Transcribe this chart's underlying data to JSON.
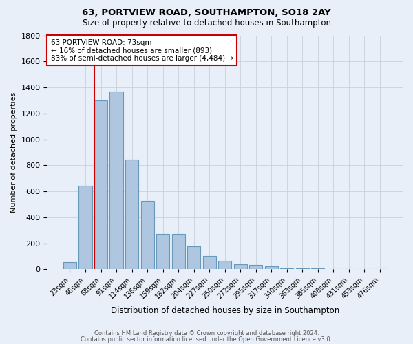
{
  "title1": "63, PORTVIEW ROAD, SOUTHAMPTON, SO18 2AY",
  "title2": "Size of property relative to detached houses in Southampton",
  "xlabel": "Distribution of detached houses by size in Southampton",
  "ylabel": "Number of detached properties",
  "footer1": "Contains HM Land Registry data © Crown copyright and database right 2024.",
  "footer2": "Contains public sector information licensed under the Open Government Licence v3.0.",
  "bar_labels": [
    "23sqm",
    "46sqm",
    "68sqm",
    "91sqm",
    "114sqm",
    "136sqm",
    "159sqm",
    "182sqm",
    "204sqm",
    "227sqm",
    "250sqm",
    "272sqm",
    "295sqm",
    "317sqm",
    "340sqm",
    "363sqm",
    "385sqm",
    "408sqm",
    "431sqm",
    "453sqm",
    "476sqm"
  ],
  "bar_values": [
    55,
    645,
    1300,
    1370,
    845,
    525,
    275,
    275,
    175,
    105,
    65,
    38,
    32,
    22,
    10,
    8,
    10,
    0,
    0,
    0,
    0
  ],
  "bar_color": "#aec6df",
  "bar_edge_color": "#6699bb",
  "background_color": "#e8eff8",
  "grid_color": "#c8d0dc",
  "vline_color": "#cc0000",
  "annotation_text": "63 PORTVIEW ROAD: 73sqm\n← 16% of detached houses are smaller (893)\n83% of semi-detached houses are larger (4,484) →",
  "annotation_box_color": "#ffffff",
  "annotation_box_edge": "#cc0000",
  "ylim": [
    0,
    1800
  ],
  "yticks": [
    0,
    200,
    400,
    600,
    800,
    1000,
    1200,
    1400,
    1600,
    1800
  ]
}
